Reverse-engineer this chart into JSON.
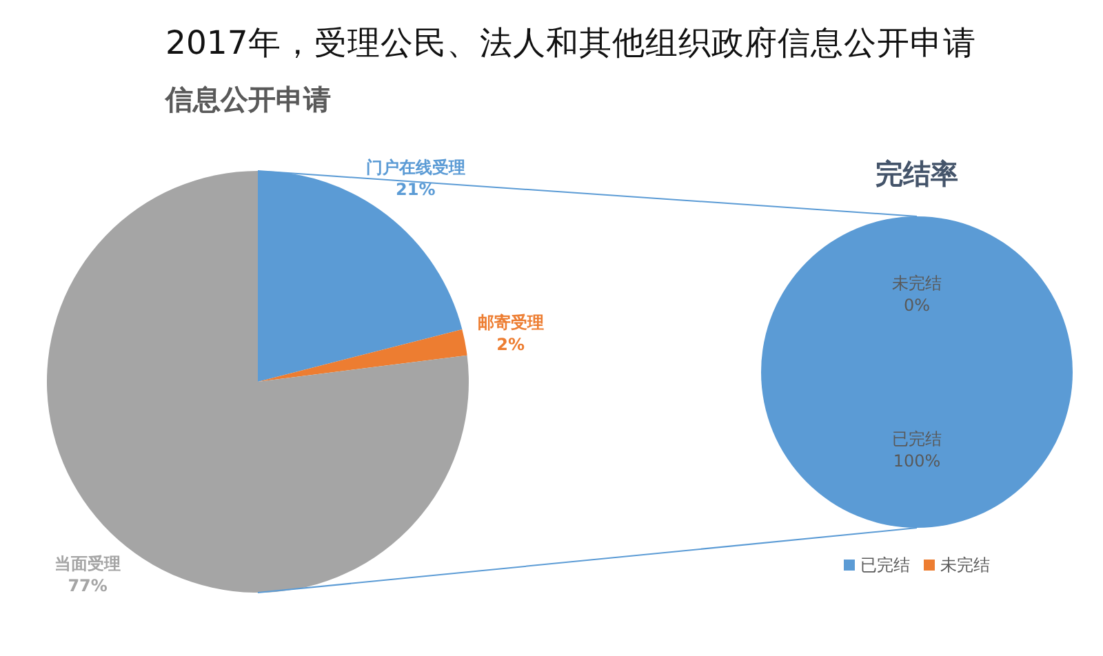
{
  "chart_data": [
    {
      "type": "pie",
      "title": "2017年，受理公民、法人和其他组织政府信息公开申请",
      "subtitle": "信息公开申请",
      "categories": [
        "门户在线受理",
        "邮寄受理",
        "当面受理"
      ],
      "values": [
        21,
        2,
        77
      ],
      "value_labels": [
        "21%",
        "2%",
        "77%"
      ],
      "colors": [
        "#5b9bd5",
        "#ed7d31",
        "#a5a5a5"
      ]
    },
    {
      "type": "pie",
      "title": "完结率",
      "categories": [
        "已完结",
        "未完结"
      ],
      "values": [
        100,
        0
      ],
      "value_labels": [
        "100%",
        "0%"
      ],
      "colors": [
        "#5b9bd5",
        "#ed7d31"
      ],
      "legend": "bottom"
    }
  ]
}
